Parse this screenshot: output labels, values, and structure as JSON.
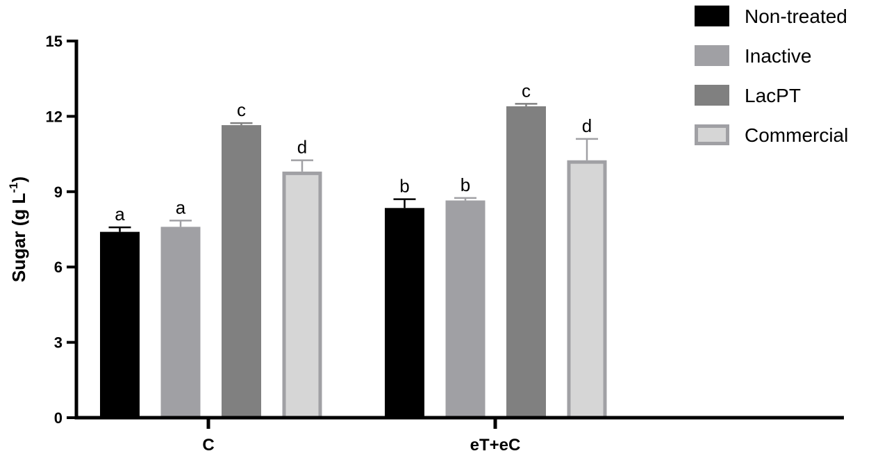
{
  "chart_data": {
    "type": "bar",
    "categories": [
      "C",
      "eT+eC"
    ],
    "ylabel": "Sugar (g L",
    "ylabel_sup": "-1",
    "ylabel_close": ")",
    "xlabel": "",
    "ylim": [
      0,
      15
    ],
    "yticks": [
      "0",
      "3",
      "6",
      "9",
      "12",
      "15"
    ],
    "legend_position": "top-right",
    "series": [
      {
        "name": "Non-treated",
        "color": "#000000",
        "outline": "#000000",
        "values": [
          7.4,
          8.35
        ],
        "errors": [
          0.18,
          0.35
        ],
        "labels": [
          "a",
          "b"
        ]
      },
      {
        "name": "Inactive",
        "color": "#a0a0a4",
        "outline": "#a0a0a4",
        "values": [
          7.6,
          8.65
        ],
        "errors": [
          0.25,
          0.1
        ],
        "labels": [
          "a",
          "b"
        ]
      },
      {
        "name": "LacPT",
        "color": "#808080",
        "outline": "#808080",
        "values": [
          11.65,
          12.4
        ],
        "errors": [
          0.08,
          0.1
        ],
        "labels": [
          "c",
          "c"
        ]
      },
      {
        "name": "Commercial",
        "color": "#d6d6d6",
        "outline": "#a0a0a4",
        "values": [
          9.8,
          10.25
        ],
        "errors": [
          0.45,
          0.85
        ],
        "labels": [
          "d",
          "d"
        ]
      }
    ]
  }
}
